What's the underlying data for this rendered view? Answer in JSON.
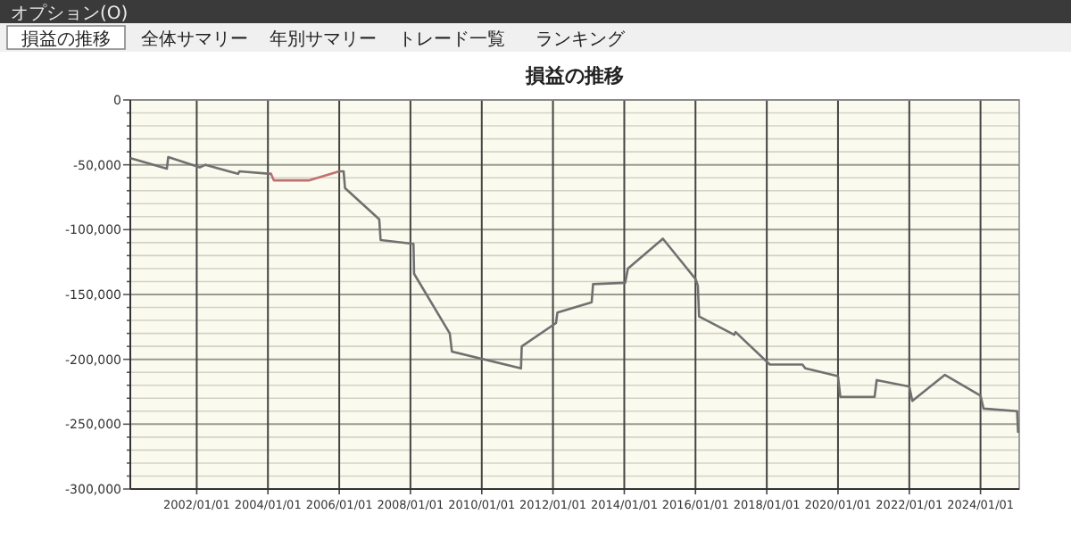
{
  "chart_data": {
    "type": "line",
    "title": "損益の推移",
    "annotations": [
      "オプション(O)",
      "損益の推移",
      "全体サマリー",
      "年別サマリー",
      "トレード一覧",
      "ランキング"
    ],
    "series": [
      {
        "color": "#707070",
        "x": [
          "2000-03-01",
          "2001-03-01",
          "2001-03-15",
          "2002-02-01",
          "2002-04-01",
          "2003-03-01",
          "2003-03-15",
          "2004-02-01"
        ],
        "values": [
          -45000,
          -53000,
          -44000,
          -52000,
          -50000,
          -57000,
          -55000,
          -57000
        ]
      },
      {
        "color": "#c07070",
        "x": [
          "2004-02-01",
          "2004-03-01",
          "2005-03-01",
          "2006-01-01"
        ],
        "values": [
          -57000,
          -62000,
          -62000,
          -55000
        ]
      },
      {
        "color": "#707070",
        "x": [
          "2006-01-01",
          "2006-02-15",
          "2006-03-01",
          "2007-02-15",
          "2007-03-01",
          "2008-02-01",
          "2008-02-07",
          "2009-02-07",
          "2009-03-01",
          "2011-02-07",
          "2011-02-15",
          "2012-02-01",
          "2012-02-15",
          "2013-02-01",
          "2013-02-15",
          "2014-01-10",
          "2014-02-07",
          "2015-02-01",
          "2016-01-01",
          "2016-01-25",
          "2016-02-07",
          "2017-02-01",
          "2017-02-15",
          "2018-02-01",
          "2019-01-01",
          "2019-02-01",
          "2020-01-01",
          "2020-01-25",
          "2021-01-10",
          "2021-02-01",
          "2022-01-01",
          "2022-02-01",
          "2023-01-01",
          "2024-01-01",
          "2024-02-01",
          "2025-01-10",
          "2025-01-20"
        ],
        "values": [
          -55000,
          -55000,
          -68000,
          -92000,
          -108000,
          -111000,
          -134000,
          -180000,
          -194000,
          -207000,
          -190000,
          -172000,
          -164000,
          -156000,
          -142000,
          -141000,
          -130000,
          -107000,
          -138000,
          -143000,
          -167000,
          -181000,
          -179000,
          -204000,
          -204000,
          -207000,
          -213000,
          -229000,
          -229000,
          -216000,
          -221000,
          -232000,
          -212000,
          -228000,
          -238000,
          -240000,
          -256000
        ]
      }
    ],
    "xlim": [
      "2000-02-20",
      "2025-02-01"
    ],
    "xticks": [
      {
        "value": "2002-01-01",
        "label": "2002/01/01"
      },
      {
        "value": "2004-01-01",
        "label": "2004/01/01"
      },
      {
        "value": "2006-01-01",
        "label": "2006/01/01"
      },
      {
        "value": "2008-01-01",
        "label": "2008/01/01"
      },
      {
        "value": "2010-01-01",
        "label": "2010/01/01"
      },
      {
        "value": "2012-01-01",
        "label": "2012/01/01"
      },
      {
        "value": "2014-01-01",
        "label": "2014/01/01"
      },
      {
        "value": "2016-01-01",
        "label": "2016/01/01"
      },
      {
        "value": "2018-01-01",
        "label": "2018/01/01"
      },
      {
        "value": "2020-01-01",
        "label": "2020/01/01"
      },
      {
        "value": "2022-01-01",
        "label": "2022/01/01"
      },
      {
        "value": "2024-01-01",
        "label": "2024/01/01"
      }
    ],
    "ylim": [
      -300000,
      0
    ],
    "yticks": [
      0,
      {
        "value": -10000,
        "label": null
      },
      {
        "value": -20000,
        "label": null
      },
      {
        "value": -30000,
        "label": null
      },
      {
        "value": -40000,
        "label": null
      },
      {
        "value": -50000,
        "label": "-50,000"
      },
      {
        "value": -60000,
        "label": null
      },
      {
        "value": -70000,
        "label": null
      },
      {
        "value": -80000,
        "label": null
      },
      {
        "value": -90000,
        "label": null
      },
      {
        "value": -100000,
        "label": "-100,000"
      },
      {
        "value": -110000,
        "label": null
      },
      {
        "value": -120000,
        "label": null
      },
      {
        "value": -130000,
        "label": null
      },
      {
        "value": -140000,
        "label": null
      },
      {
        "value": -150000,
        "label": "-150,000"
      },
      {
        "value": -160000,
        "label": null
      },
      {
        "value": -170000,
        "label": null
      },
      {
        "value": -180000,
        "label": null
      },
      {
        "value": -190000,
        "label": null
      },
      {
        "value": -200000,
        "label": "-200,000"
      },
      {
        "value": -210000,
        "label": null
      },
      {
        "value": -220000,
        "label": null
      },
      {
        "value": -230000,
        "label": null
      },
      {
        "value": -240000,
        "label": null
      },
      {
        "value": -250000,
        "label": "-250,000"
      },
      {
        "value": -260000,
        "label": null
      },
      {
        "value": -270000,
        "label": null
      },
      {
        "value": -280000,
        "label": null
      },
      {
        "value": -290000,
        "label": null
      },
      {
        "value": -300000,
        "label": "-300,000"
      }
    ],
    "grid": true
  }
}
